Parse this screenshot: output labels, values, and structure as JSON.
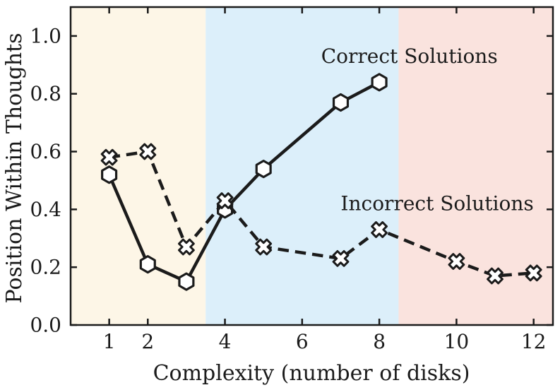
{
  "chart_data": {
    "type": "line",
    "title": "",
    "xlabel": "Complexity (number of disks)",
    "ylabel": "Position Within Thoughts",
    "xlim": [
      0,
      12.5
    ],
    "ylim": [
      0,
      1.1
    ],
    "x_ticks": [
      1,
      2,
      4,
      6,
      8,
      10,
      12
    ],
    "y_ticks": [
      0.0,
      0.2,
      0.4,
      0.6,
      0.8,
      1.0
    ],
    "grid": false,
    "legend_position": "inline-annotations",
    "bands": [
      {
        "name": "low-complexity-band",
        "x_from": 0,
        "x_to": 3.5,
        "color": "#FDF6E7"
      },
      {
        "name": "medium-complexity-band",
        "x_from": 3.5,
        "x_to": 8.5,
        "color": "#DCEFFA"
      },
      {
        "name": "high-complexity-band",
        "x_from": 8.5,
        "x_to": 12.5,
        "color": "#FAE3DE"
      }
    ],
    "series": [
      {
        "name": "Correct Solutions",
        "marker": "hexagon",
        "line_style": "solid",
        "x": [
          1,
          2,
          3,
          4,
          5,
          7,
          8
        ],
        "y": [
          0.52,
          0.21,
          0.15,
          0.4,
          0.54,
          0.77,
          0.84
        ]
      },
      {
        "name": "Incorrect Solutions",
        "marker": "x",
        "line_style": "dashed",
        "x": [
          1,
          2,
          3,
          4,
          5,
          7,
          8,
          10,
          11,
          12
        ],
        "y": [
          0.58,
          0.6,
          0.27,
          0.43,
          0.27,
          0.23,
          0.33,
          0.22,
          0.17,
          0.18
        ]
      }
    ],
    "annotations": [
      {
        "text": "Correct Solutions",
        "x": 8.78,
        "y": 0.93
      },
      {
        "text": "Incorrect Solutions",
        "x": 9.5,
        "y": 0.42
      }
    ],
    "colors": {
      "line": "#1b1b1b",
      "marker_face": "#ffffff",
      "text": "#1b1b1b",
      "background": "#ffffff"
    }
  }
}
